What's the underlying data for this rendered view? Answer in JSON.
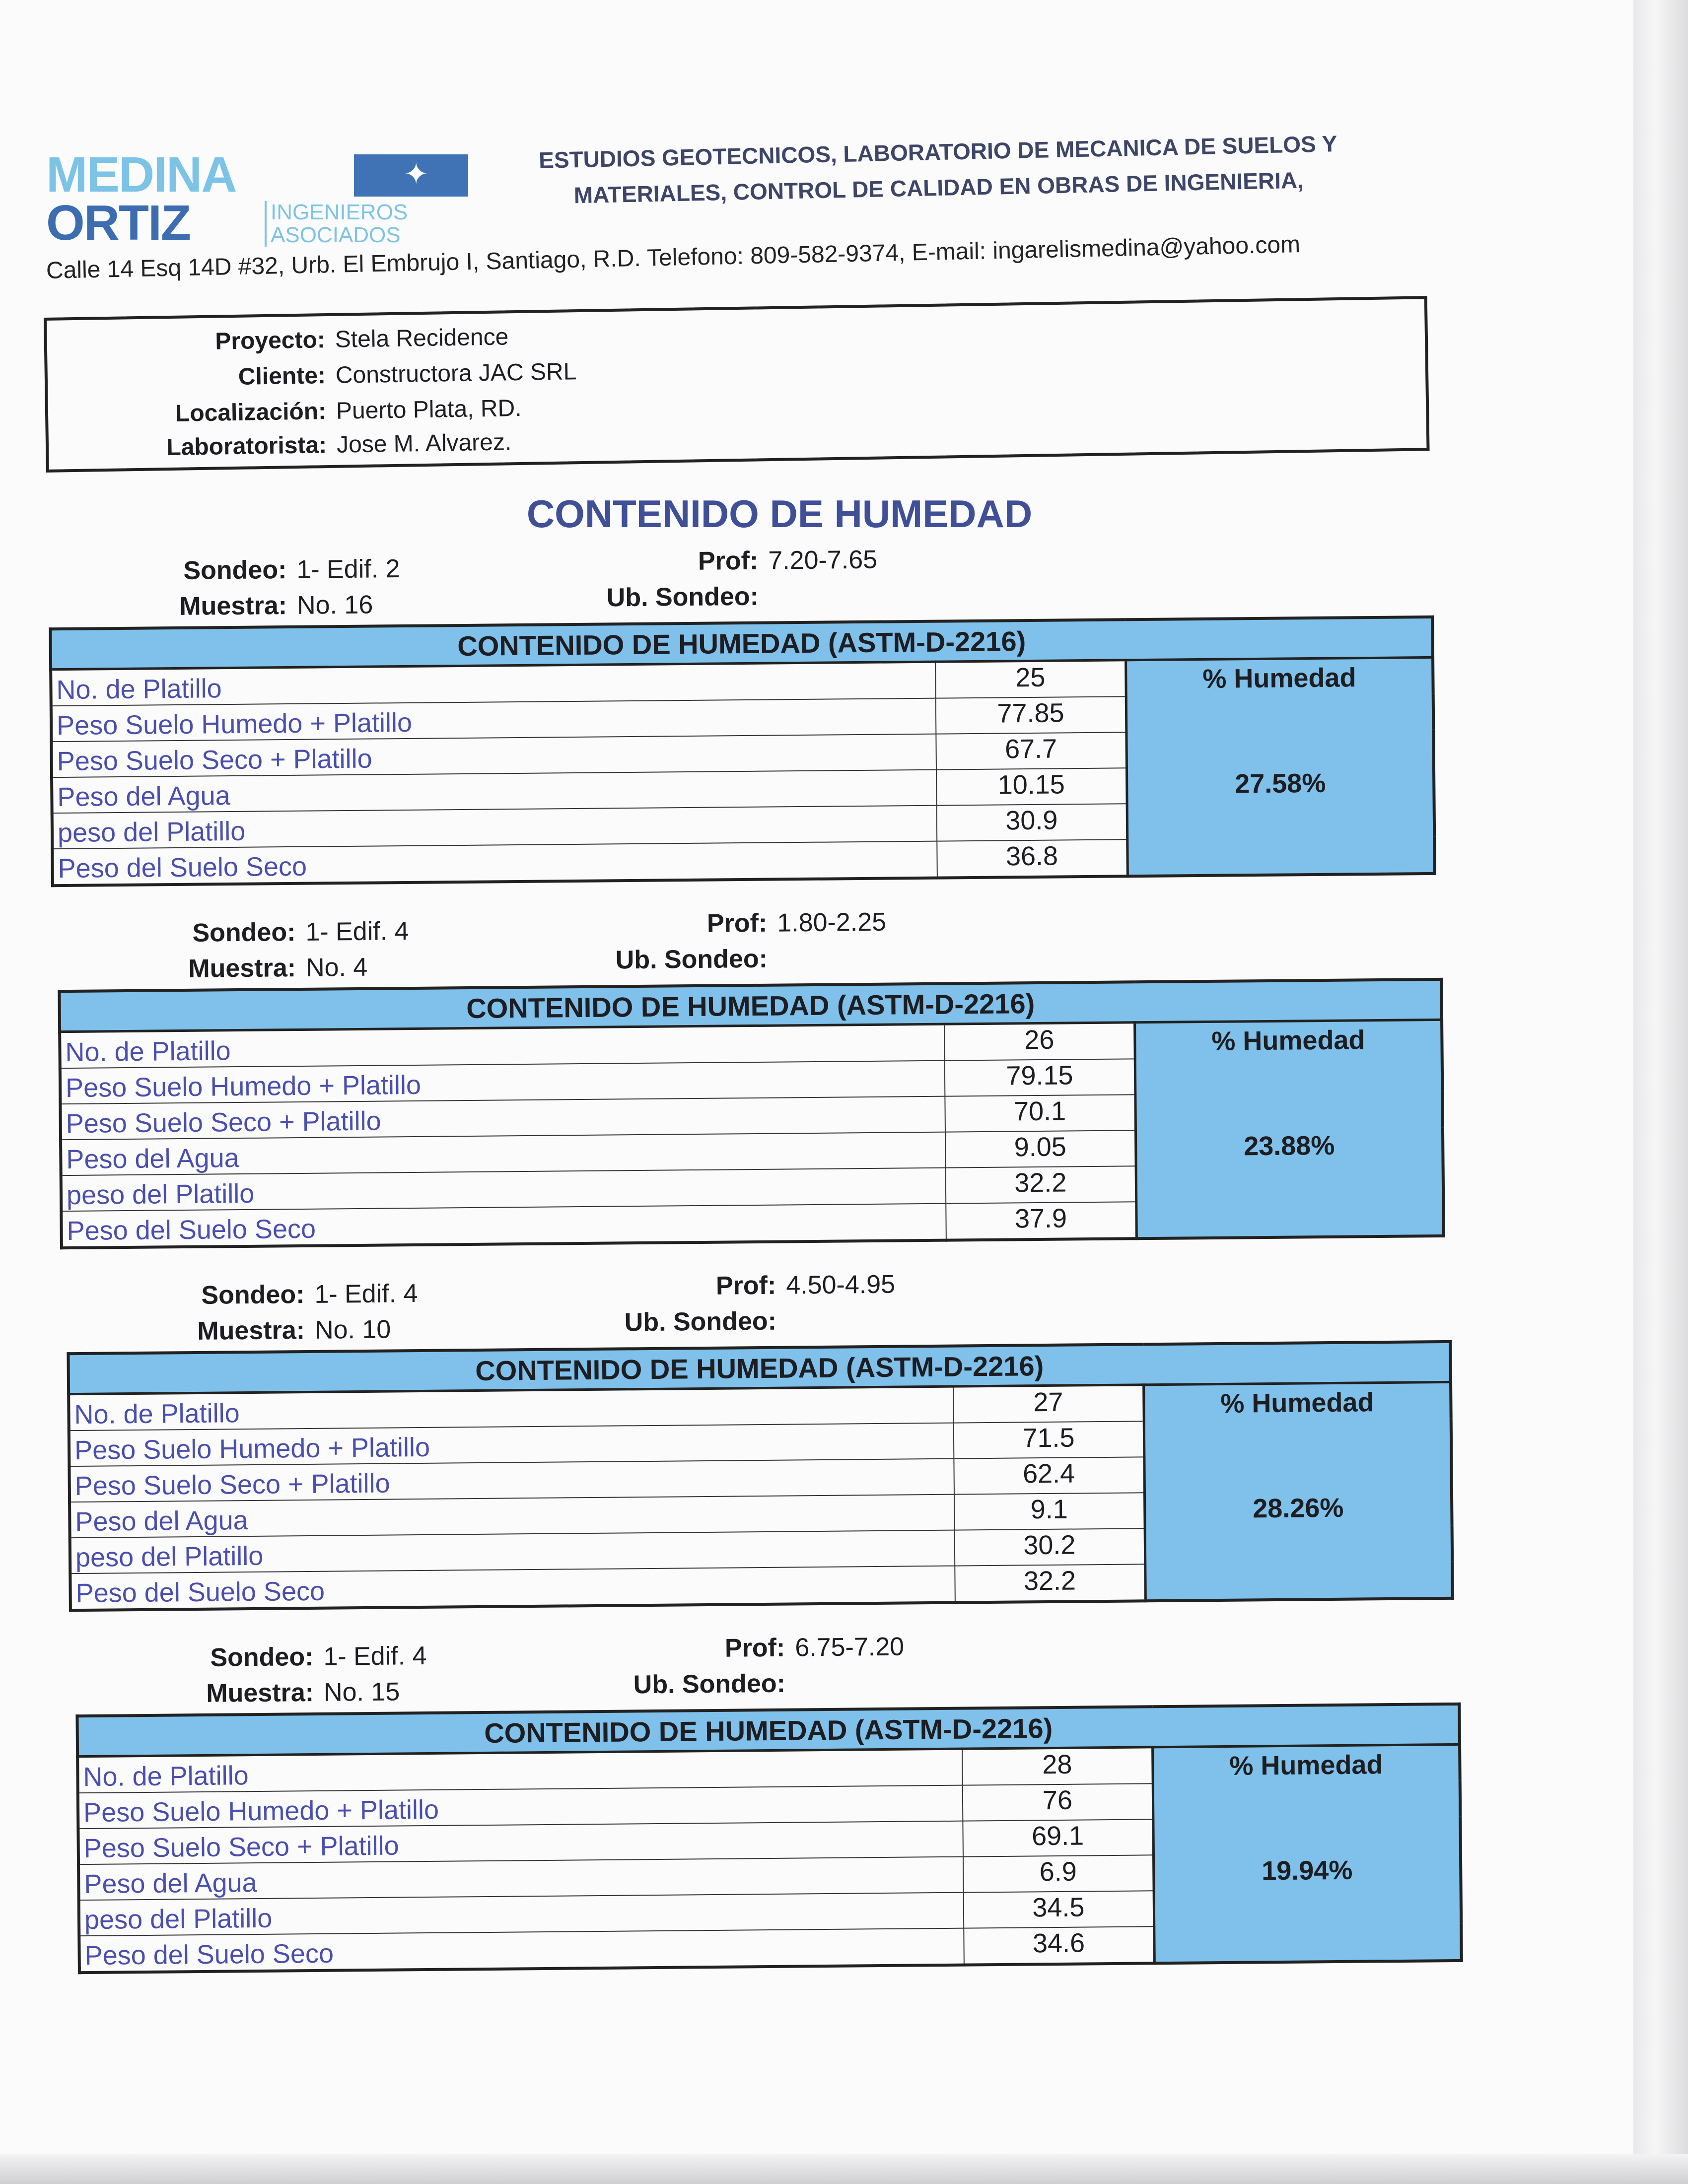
{
  "header": {
    "logo_line1": "MEDINA",
    "logo_line2": "ORTIZ",
    "logo_sub1": "INGENIEROS",
    "logo_sub2": "ASOCIADOS",
    "headline_line1": "ESTUDIOS GEOTECNICOS, LABORATORIO DE MECANICA DE SUELOS Y",
    "headline_line2": "MATERIALES, CONTROL DE CALIDAD EN OBRAS DE INGENIERIA,",
    "address": "Calle 14 Esq 14D #32, Urb. El Embrujo I, Santiago, R.D. Telefono: 809-582-9374, E-mail: ingarelismedina@yahoo.com"
  },
  "info": [
    {
      "label": "Proyecto:",
      "value": "Stela Recidence"
    },
    {
      "label": "Cliente:",
      "value": "Constructora JAC SRL"
    },
    {
      "label": "Localización:",
      "value": "Puerto Plata, RD."
    },
    {
      "label": "Laboratorista:",
      "value": "Jose M. Alvarez."
    }
  ],
  "title": "CONTENIDO DE HUMEDAD",
  "labels": {
    "sondeo": "Sondeo:",
    "muestra": "Muestra:",
    "prof": "Prof:",
    "ub_sondeo": "Ub. Sondeo:",
    "table_header": "CONTENIDO DE HUMEDAD (ASTM-D-2216)",
    "pct_header": "% Humedad",
    "rows": [
      "No. de Platillo",
      "Peso Suelo Humedo + Platillo",
      "Peso Suelo Seco + Platillo",
      "Peso del Agua",
      "peso del Platillo",
      "Peso del Suelo Seco"
    ]
  },
  "samples": [
    {
      "sondeo": "1- Edif. 2",
      "muestra": "No. 16",
      "prof": "7.20-7.65",
      "ub_sondeo": "",
      "values": [
        "25",
        "77.85",
        "67.7",
        "10.15",
        "30.9",
        "36.8"
      ],
      "humedad": "27.58%"
    },
    {
      "sondeo": "1- Edif. 4",
      "muestra": "No. 4",
      "prof": "1.80-2.25",
      "ub_sondeo": "",
      "values": [
        "26",
        "79.15",
        "70.1",
        "9.05",
        "32.2",
        "37.9"
      ],
      "humedad": "23.88%"
    },
    {
      "sondeo": "1- Edif. 4",
      "muestra": "No. 10",
      "prof": "4.50-4.95",
      "ub_sondeo": "",
      "values": [
        "27",
        "71.5",
        "62.4",
        "9.1",
        "30.2",
        "32.2"
      ],
      "humedad": "28.26%"
    },
    {
      "sondeo": "1- Edif. 4",
      "muestra": "No. 15",
      "prof": "6.75-7.20",
      "ub_sondeo": "",
      "values": [
        "28",
        "76",
        "69.1",
        "6.9",
        "34.5",
        "34.6"
      ],
      "humedad": "19.94%"
    }
  ],
  "colors": {
    "table_blue": "#7fc1ea",
    "title_blue": "#3f4f98",
    "label_purple": "#4a4fae"
  }
}
